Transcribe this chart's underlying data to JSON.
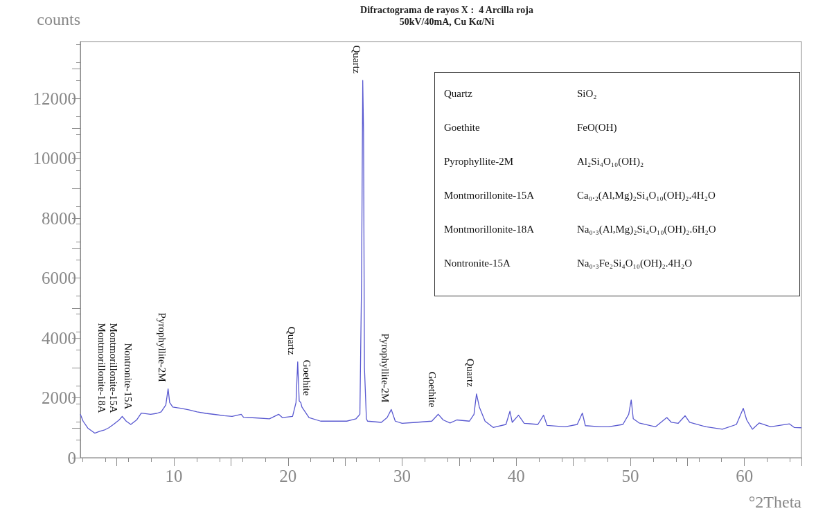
{
  "chart_data": {
    "type": "line",
    "title": "Difractograma de rayos X :  4 Arcilla roja",
    "subtitle": "50kV/40mA, Cu Kα/Ni",
    "xlabel": "°2Theta",
    "ylabel": "counts",
    "color": "#5858d0",
    "grid": false,
    "marker": "none",
    "line_style": "solid",
    "xlim": [
      1.8,
      65
    ],
    "ylim": [
      0,
      13900
    ],
    "xticks": [
      {
        "value": 5,
        "label": null
      },
      10,
      {
        "value": 15,
        "label": null
      },
      20,
      {
        "value": 25,
        "label": null
      },
      30,
      {
        "value": 35,
        "label": null
      },
      40,
      {
        "value": 45,
        "label": null
      },
      50,
      {
        "value": 55,
        "label": null
      },
      60,
      {
        "value": 65,
        "label": null
      }
    ],
    "yticks": [
      0,
      {
        "value": 1000,
        "label": null
      },
      2000,
      {
        "value": 3000,
        "label": null
      },
      4000,
      {
        "value": 5000,
        "label": null
      },
      6000,
      {
        "value": 7000,
        "label": null
      },
      8000,
      {
        "value": 9000,
        "label": null
      },
      10000,
      {
        "value": 11000,
        "label": null
      },
      12000,
      {
        "value": 13000,
        "label": null
      }
    ],
    "x": [
      1.8,
      2.04,
      2.45,
      3.06,
      3.5,
      3.88,
      4.3,
      4.7,
      5.2,
      5.47,
      5.82,
      6.22,
      6.73,
      7.14,
      7.96,
      8.5,
      8.88,
      9.29,
      9.49,
      9.63,
      9.9,
      10.6,
      11.3,
      12.04,
      12.8,
      13.67,
      14.4,
      15.1,
      15.9,
      16.1,
      17.14,
      18.37,
      19.18,
      19.5,
      20.4,
      20.7,
      20.85,
      20.98,
      21.12,
      21.22,
      21.84,
      22.86,
      24.3,
      25.15,
      25.96,
      26.3,
      26.45,
      26.55,
      26.62,
      26.7,
      26.87,
      26.97,
      28.18,
      28.69,
      29.05,
      29.4,
      30,
      31.2,
      32.6,
      33.17,
      33.6,
      34.2,
      34.8,
      35.9,
      36.3,
      36.52,
      36.77,
      37.27,
      37.98,
      39.1,
      39.45,
      39.65,
      40.2,
      40.7,
      41.9,
      42.4,
      42.7,
      44.3,
      45.35,
      45.8,
      46.06,
      47.4,
      48.1,
      49.35,
      49.86,
      50.08,
      50.26,
      50.77,
      52.2,
      53.2,
      53.6,
      54.2,
      54.8,
      55.2,
      56.65,
      58.07,
      59.3,
      59.9,
      60.2,
      60.7,
      61.3,
      62.3,
      63.95,
      64.36,
      65
    ],
    "values": [
      1450,
      1220,
      990,
      820,
      880,
      920,
      1000,
      1110,
      1260,
      1380,
      1220,
      1110,
      1260,
      1490,
      1450,
      1480,
      1530,
      1760,
      2300,
      1840,
      1690,
      1650,
      1600,
      1530,
      1480,
      1440,
      1400,
      1380,
      1450,
      1350,
      1330,
      1300,
      1450,
      1340,
      1380,
      1840,
      3200,
      1900,
      1840,
      1690,
      1340,
      1220,
      1220,
      1220,
      1300,
      1450,
      6000,
      12600,
      10880,
      3000,
      1300,
      1220,
      1180,
      1340,
      1610,
      1220,
      1150,
      1180,
      1220,
      1450,
      1260,
      1160,
      1260,
      1220,
      1450,
      2130,
      1690,
      1220,
      1010,
      1110,
      1550,
      1180,
      1420,
      1150,
      1110,
      1420,
      1080,
      1030,
      1110,
      1490,
      1070,
      1030,
      1030,
      1110,
      1450,
      1930,
      1300,
      1160,
      1030,
      1340,
      1180,
      1150,
      1400,
      1180,
      1030,
      950,
      1110,
      1650,
      1260,
      950,
      1160,
      1030,
      1130,
      1010,
      1000
    ],
    "annotations": [
      {
        "text": "Montmorillonite-18A",
        "x": 5.2,
        "y": 1260
      },
      {
        "text": "Montmorillonite-15A",
        "x": 5.2,
        "y": 1260
      },
      {
        "text": "Nontronite-15A",
        "x": 5.47,
        "y": 1380
      },
      {
        "text": "Pyrophyllite-2M",
        "x": 9.49,
        "y": 2300
      },
      {
        "text": "Quartz",
        "x": 20.85,
        "y": 3200
      },
      {
        "text": "Goethite",
        "x": 21.12,
        "y": 1840
      },
      {
        "text": "Quartz",
        "x": 26.55,
        "y": 12600
      },
      {
        "text": "Pyrophyllite-2M",
        "x": 29.05,
        "y": 1610
      },
      {
        "text": "Goethite",
        "x": 33.17,
        "y": 1450
      },
      {
        "text": "Quartz",
        "x": 36.52,
        "y": 2130
      },
      "Quartz",
      "SiO₂",
      "Goethite",
      "FeO(OH)",
      "Pyrophyllite-2M",
      "Al₂Si₄O₁₀(OH)₂",
      "Montmorillonite-15A",
      "Ca₀.₂(Al,Mg)₂Si₄O₁₀(OH)₂.4H₂O",
      "Montmorillonite-18A",
      "Na₀.₃(Al,Mg)₂Si₄O₁₀(OH)₂.6H₂O",
      "Nontronite-15A",
      "Na₀.₃Fe₂Si₄O₁₀(OH)₂.4H₂O"
    ]
  }
}
